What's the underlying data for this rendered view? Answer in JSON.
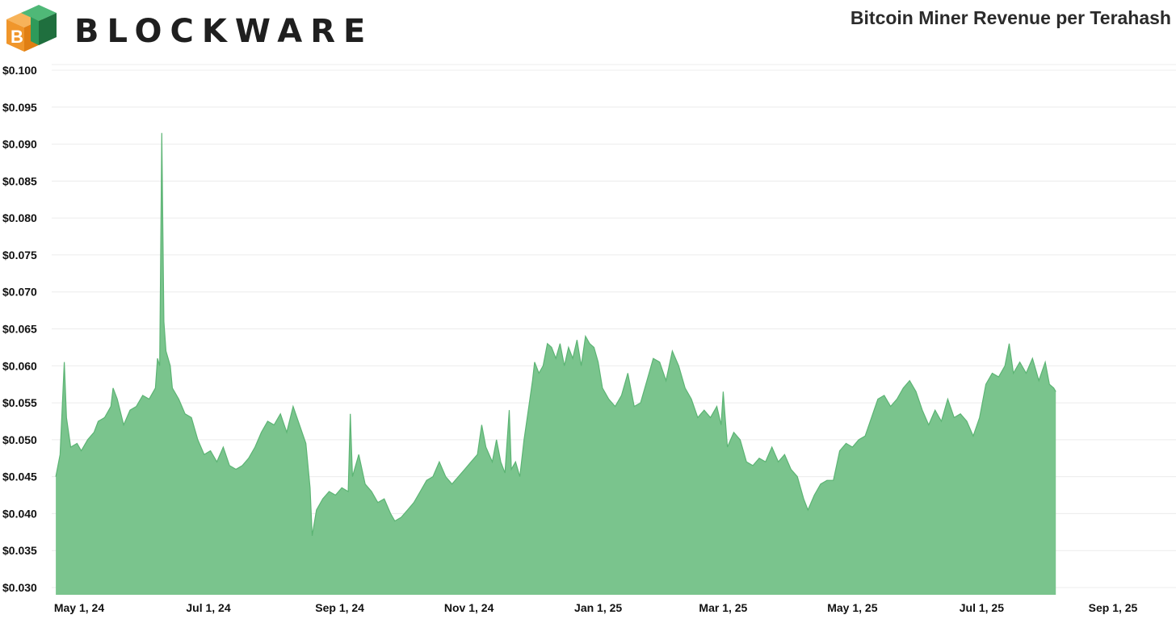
{
  "header": {
    "brand": "BLOCKWARE",
    "title": "Bitcoin Miner Revenue per Terahash"
  },
  "colors": {
    "area_fill": "#7ac48d",
    "area_stroke": "#5cb474",
    "grid": "#ececec",
    "logo_orange": "#f0962b",
    "logo_green": "#2e9a5a",
    "logo_dark_green": "#1f6f3e"
  },
  "icons": {
    "logo": "blockware-cube-logo"
  },
  "chart_data": {
    "type": "area",
    "title": "Bitcoin Miner Revenue per Terahash",
    "xlabel": "",
    "ylabel": "",
    "ylim": [
      0.03,
      0.1
    ],
    "xlim": [
      "2024-04-01",
      "2025-09-30"
    ],
    "grid": true,
    "legend": "none",
    "y_ticks": [
      0.1,
      0.095,
      0.09,
      0.085,
      0.08,
      0.075,
      0.07,
      0.065,
      0.06,
      0.055,
      0.05,
      0.045,
      0.04,
      0.035,
      0.03
    ],
    "y_tick_labels": [
      "$0.100",
      "$0.095",
      "$0.090",
      "$0.085",
      "$0.080",
      "$0.075",
      "$0.070",
      "$0.065",
      "$0.060",
      "$0.055",
      "$0.050",
      "$0.045",
      "$0.040",
      "$0.035",
      "$0.030"
    ],
    "x_ticks": [
      "2024-05-01",
      "2024-07-01",
      "2024-09-01",
      "2024-11-01",
      "2025-01-01",
      "2025-03-01",
      "2025-05-01",
      "2025-07-01",
      "2025-09-01"
    ],
    "x_tick_labels": [
      "May 1, 24",
      "Jul 1, 24",
      "Sep 1, 24",
      "Nov 1, 24",
      "Jan 1, 25",
      "Mar 1, 25",
      "May 1, 25",
      "Jul 1, 25",
      "Sep 1, 25"
    ],
    "series": [
      {
        "points": [
          [
            "2024-04-20",
            0.045
          ],
          [
            "2024-04-22",
            0.048
          ],
          [
            "2024-04-24",
            0.0605
          ],
          [
            "2024-04-25",
            0.053
          ],
          [
            "2024-04-27",
            0.049
          ],
          [
            "2024-04-30",
            0.0495
          ],
          [
            "2024-05-02",
            0.0485
          ],
          [
            "2024-05-05",
            0.05
          ],
          [
            "2024-05-08",
            0.051
          ],
          [
            "2024-05-10",
            0.0525
          ],
          [
            "2024-05-13",
            0.053
          ],
          [
            "2024-05-16",
            0.0545
          ],
          [
            "2024-05-17",
            0.057
          ],
          [
            "2024-05-19",
            0.0555
          ],
          [
            "2024-05-22",
            0.052
          ],
          [
            "2024-05-25",
            0.054
          ],
          [
            "2024-05-28",
            0.0545
          ],
          [
            "2024-05-31",
            0.056
          ],
          [
            "2024-06-03",
            0.0555
          ],
          [
            "2024-06-06",
            0.057
          ],
          [
            "2024-06-07",
            0.061
          ],
          [
            "2024-06-08",
            0.06
          ],
          [
            "2024-06-09",
            0.0915
          ],
          [
            "2024-06-10",
            0.066
          ],
          [
            "2024-06-11",
            0.062
          ],
          [
            "2024-06-13",
            0.06
          ],
          [
            "2024-06-14",
            0.057
          ],
          [
            "2024-06-17",
            0.0555
          ],
          [
            "2024-06-20",
            0.0535
          ],
          [
            "2024-06-23",
            0.053
          ],
          [
            "2024-06-26",
            0.05
          ],
          [
            "2024-06-29",
            0.048
          ],
          [
            "2024-07-02",
            0.0485
          ],
          [
            "2024-07-05",
            0.047
          ],
          [
            "2024-07-08",
            0.049
          ],
          [
            "2024-07-11",
            0.0465
          ],
          [
            "2024-07-14",
            0.046
          ],
          [
            "2024-07-17",
            0.0465
          ],
          [
            "2024-07-20",
            0.0475
          ],
          [
            "2024-07-23",
            0.049
          ],
          [
            "2024-07-26",
            0.051
          ],
          [
            "2024-07-29",
            0.0525
          ],
          [
            "2024-08-01",
            0.052
          ],
          [
            "2024-08-04",
            0.0535
          ],
          [
            "2024-08-07",
            0.051
          ],
          [
            "2024-08-10",
            0.0545
          ],
          [
            "2024-08-13",
            0.052
          ],
          [
            "2024-08-16",
            0.0495
          ],
          [
            "2024-08-18",
            0.0435
          ],
          [
            "2024-08-19",
            0.037
          ],
          [
            "2024-08-21",
            0.0405
          ],
          [
            "2024-08-24",
            0.042
          ],
          [
            "2024-08-27",
            0.043
          ],
          [
            "2024-08-30",
            0.0425
          ],
          [
            "2024-09-02",
            0.0435
          ],
          [
            "2024-09-05",
            0.043
          ],
          [
            "2024-09-06",
            0.0535
          ],
          [
            "2024-09-07",
            0.045
          ],
          [
            "2024-09-10",
            0.048
          ],
          [
            "2024-09-13",
            0.044
          ],
          [
            "2024-09-16",
            0.043
          ],
          [
            "2024-09-19",
            0.0415
          ],
          [
            "2024-09-22",
            0.042
          ],
          [
            "2024-09-25",
            0.04
          ],
          [
            "2024-09-27",
            0.039
          ],
          [
            "2024-09-30",
            0.0395
          ],
          [
            "2024-10-03",
            0.0405
          ],
          [
            "2024-10-06",
            0.0415
          ],
          [
            "2024-10-09",
            0.043
          ],
          [
            "2024-10-12",
            0.0445
          ],
          [
            "2024-10-15",
            0.045
          ],
          [
            "2024-10-18",
            0.047
          ],
          [
            "2024-10-21",
            0.045
          ],
          [
            "2024-10-24",
            0.044
          ],
          [
            "2024-10-27",
            0.045
          ],
          [
            "2024-10-30",
            0.046
          ],
          [
            "2024-11-02",
            0.047
          ],
          [
            "2024-11-05",
            0.048
          ],
          [
            "2024-11-07",
            0.052
          ],
          [
            "2024-11-09",
            0.049
          ],
          [
            "2024-11-12",
            0.047
          ],
          [
            "2024-11-14",
            0.05
          ],
          [
            "2024-11-16",
            0.047
          ],
          [
            "2024-11-18",
            0.0455
          ],
          [
            "2024-11-20",
            0.054
          ],
          [
            "2024-11-21",
            0.046
          ],
          [
            "2024-11-23",
            0.047
          ],
          [
            "2024-11-25",
            0.045
          ],
          [
            "2024-11-27",
            0.05
          ],
          [
            "2024-11-29",
            0.054
          ],
          [
            "2024-12-01",
            0.058
          ],
          [
            "2024-12-02",
            0.0605
          ],
          [
            "2024-12-04",
            0.059
          ],
          [
            "2024-12-06",
            0.06
          ],
          [
            "2024-12-08",
            0.063
          ],
          [
            "2024-12-10",
            0.0625
          ],
          [
            "2024-12-12",
            0.061
          ],
          [
            "2024-12-14",
            0.063
          ],
          [
            "2024-12-16",
            0.06
          ],
          [
            "2024-12-18",
            0.0625
          ],
          [
            "2024-12-20",
            0.061
          ],
          [
            "2024-12-22",
            0.0635
          ],
          [
            "2024-12-24",
            0.06
          ],
          [
            "2024-12-26",
            0.064
          ],
          [
            "2024-12-28",
            0.063
          ],
          [
            "2024-12-30",
            0.0625
          ],
          [
            "2025-01-01",
            0.0605
          ],
          [
            "2025-01-03",
            0.057
          ],
          [
            "2025-01-06",
            0.0555
          ],
          [
            "2025-01-09",
            0.0545
          ],
          [
            "2025-01-12",
            0.056
          ],
          [
            "2025-01-15",
            0.059
          ],
          [
            "2025-01-18",
            0.0545
          ],
          [
            "2025-01-21",
            0.055
          ],
          [
            "2025-01-24",
            0.058
          ],
          [
            "2025-01-27",
            0.061
          ],
          [
            "2025-01-30",
            0.0605
          ],
          [
            "2025-02-02",
            0.058
          ],
          [
            "2025-02-05",
            0.062
          ],
          [
            "2025-02-08",
            0.06
          ],
          [
            "2025-02-11",
            0.057
          ],
          [
            "2025-02-14",
            0.0555
          ],
          [
            "2025-02-17",
            0.053
          ],
          [
            "2025-02-20",
            0.054
          ],
          [
            "2025-02-23",
            0.053
          ],
          [
            "2025-02-26",
            0.0545
          ],
          [
            "2025-02-28",
            0.052
          ],
          [
            "2025-03-01",
            0.0565
          ],
          [
            "2025-03-03",
            0.049
          ],
          [
            "2025-03-06",
            0.051
          ],
          [
            "2025-03-09",
            0.05
          ],
          [
            "2025-03-12",
            0.047
          ],
          [
            "2025-03-15",
            0.0465
          ],
          [
            "2025-03-18",
            0.0475
          ],
          [
            "2025-03-21",
            0.047
          ],
          [
            "2025-03-24",
            0.049
          ],
          [
            "2025-03-27",
            0.047
          ],
          [
            "2025-03-30",
            0.048
          ],
          [
            "2025-04-02",
            0.046
          ],
          [
            "2025-04-05",
            0.045
          ],
          [
            "2025-04-08",
            0.042
          ],
          [
            "2025-04-10",
            0.0405
          ],
          [
            "2025-04-13",
            0.0425
          ],
          [
            "2025-04-16",
            0.044
          ],
          [
            "2025-04-19",
            0.0445
          ],
          [
            "2025-04-22",
            0.0445
          ],
          [
            "2025-04-25",
            0.0485
          ],
          [
            "2025-04-28",
            0.0495
          ],
          [
            "2025-05-01",
            0.049
          ],
          [
            "2025-05-04",
            0.05
          ],
          [
            "2025-05-07",
            0.0505
          ],
          [
            "2025-05-10",
            0.053
          ],
          [
            "2025-05-13",
            0.0555
          ],
          [
            "2025-05-16",
            0.056
          ],
          [
            "2025-05-19",
            0.0545
          ],
          [
            "2025-05-22",
            0.0555
          ],
          [
            "2025-05-25",
            0.057
          ],
          [
            "2025-05-28",
            0.058
          ],
          [
            "2025-05-31",
            0.0565
          ],
          [
            "2025-06-03",
            0.054
          ],
          [
            "2025-06-06",
            0.052
          ],
          [
            "2025-06-09",
            0.054
          ],
          [
            "2025-06-12",
            0.0525
          ],
          [
            "2025-06-15",
            0.0555
          ],
          [
            "2025-06-18",
            0.053
          ],
          [
            "2025-06-21",
            0.0535
          ],
          [
            "2025-06-24",
            0.0525
          ],
          [
            "2025-06-27",
            0.0505
          ],
          [
            "2025-06-30",
            0.053
          ],
          [
            "2025-07-03",
            0.0575
          ],
          [
            "2025-07-06",
            0.059
          ],
          [
            "2025-07-09",
            0.0585
          ],
          [
            "2025-07-12",
            0.06
          ],
          [
            "2025-07-14",
            0.063
          ],
          [
            "2025-07-16",
            0.059
          ],
          [
            "2025-07-19",
            0.0605
          ],
          [
            "2025-07-22",
            0.059
          ],
          [
            "2025-07-25",
            0.061
          ],
          [
            "2025-07-28",
            0.058
          ],
          [
            "2025-07-31",
            0.0605
          ],
          [
            "2025-08-02",
            0.0575
          ],
          [
            "2025-08-04",
            0.057
          ],
          [
            "2025-08-05",
            0.0565
          ]
        ]
      }
    ]
  }
}
